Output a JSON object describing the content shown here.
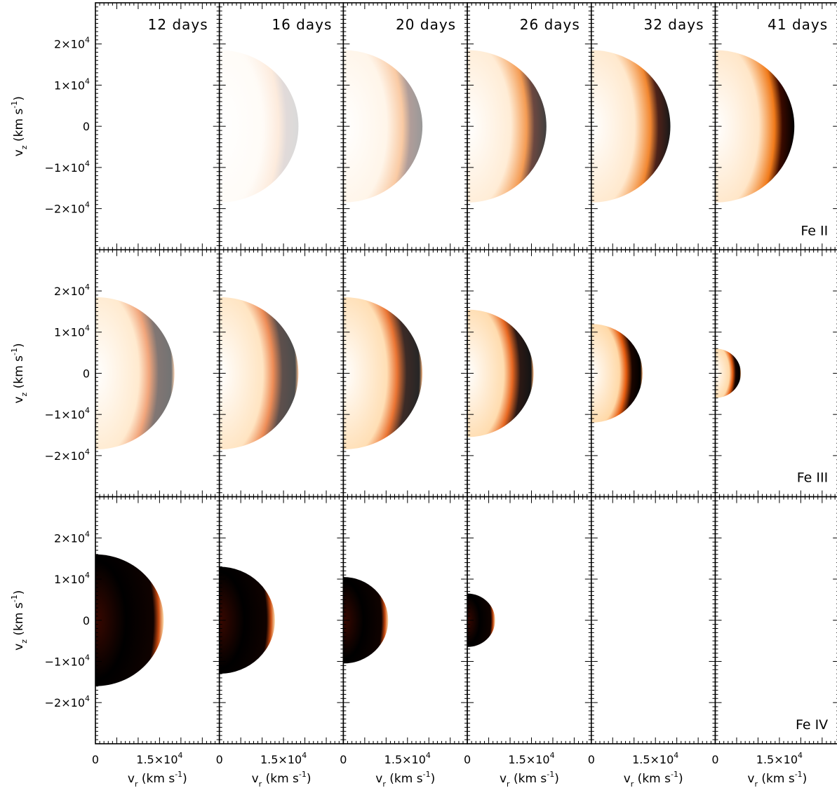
{
  "chart_data": {
    "type": "heatmap",
    "description_colormap": "white-orange-black",
    "panel_titles": [
      "12 days",
      "16 days",
      "20 days",
      "26 days",
      "32 days",
      "41 days"
    ],
    "row_labels": [
      "Fe II",
      "Fe III",
      "Fe IV"
    ],
    "xlabel": "v_r (km s^-1)",
    "ylabel": "v_z (km s^-1)",
    "x_tick_labels": [
      "0",
      "1.5×10^4"
    ],
    "x_ticks": [
      0,
      15000
    ],
    "y_tick_labels": [
      "2×10^4",
      "1×10^4",
      "0",
      "−1×10^4",
      "−2×10^4"
    ],
    "y_ticks": [
      20000,
      10000,
      0,
      -10000,
      -20000
    ],
    "xlim": [
      0,
      29000
    ],
    "ylim": [
      -30000,
      30000
    ],
    "rows": [
      {
        "ion": "Fe II",
        "panels": [
          {
            "day": "12 days",
            "dark_radius": 0,
            "outer_radius": 0,
            "tint": 0
          },
          {
            "day": "16 days",
            "dark_radius": 0,
            "outer_radius": 18500,
            "tint": 0.15
          },
          {
            "day": "20 days",
            "dark_radius": 0,
            "outer_radius": 18500,
            "tint": 0.4
          },
          {
            "day": "26 days",
            "dark_radius": 0,
            "outer_radius": 18500,
            "tint": 0.75
          },
          {
            "day": "32 days",
            "dark_radius": 0,
            "outer_radius": 18500,
            "tint": 0.9
          },
          {
            "day": "41 days",
            "dark_radius": 0,
            "outer_radius": 18500,
            "tint": 1.0
          }
        ]
      },
      {
        "ion": "Fe III",
        "panels": [
          {
            "day": "12 days",
            "outer_radius": 18500,
            "tint": 0.55
          },
          {
            "day": "16 days",
            "outer_radius": 18500,
            "tint": 0.7
          },
          {
            "day": "20 days",
            "outer_radius": 18500,
            "tint": 0.85
          },
          {
            "day": "26 days",
            "outer_radius": 15500,
            "tint": 0.92
          },
          {
            "day": "32 days",
            "outer_radius": 12000,
            "tint": 1.0
          },
          {
            "day": "41 days",
            "outer_radius": 6000,
            "tint": 1.0
          }
        ]
      },
      {
        "ion": "Fe IV",
        "panels": [
          {
            "day": "12 days",
            "outer_radius": 16000,
            "tint": 1.0
          },
          {
            "day": "16 days",
            "outer_radius": 13000,
            "tint": 1.0
          },
          {
            "day": "20 days",
            "outer_radius": 10500,
            "tint": 1.0
          },
          {
            "day": "26 days",
            "outer_radius": 6500,
            "tint": 1.0
          },
          {
            "day": "32 days",
            "outer_radius": 0,
            "tint": 0
          },
          {
            "day": "41 days",
            "outer_radius": 0,
            "tint": 0
          }
        ]
      }
    ]
  }
}
